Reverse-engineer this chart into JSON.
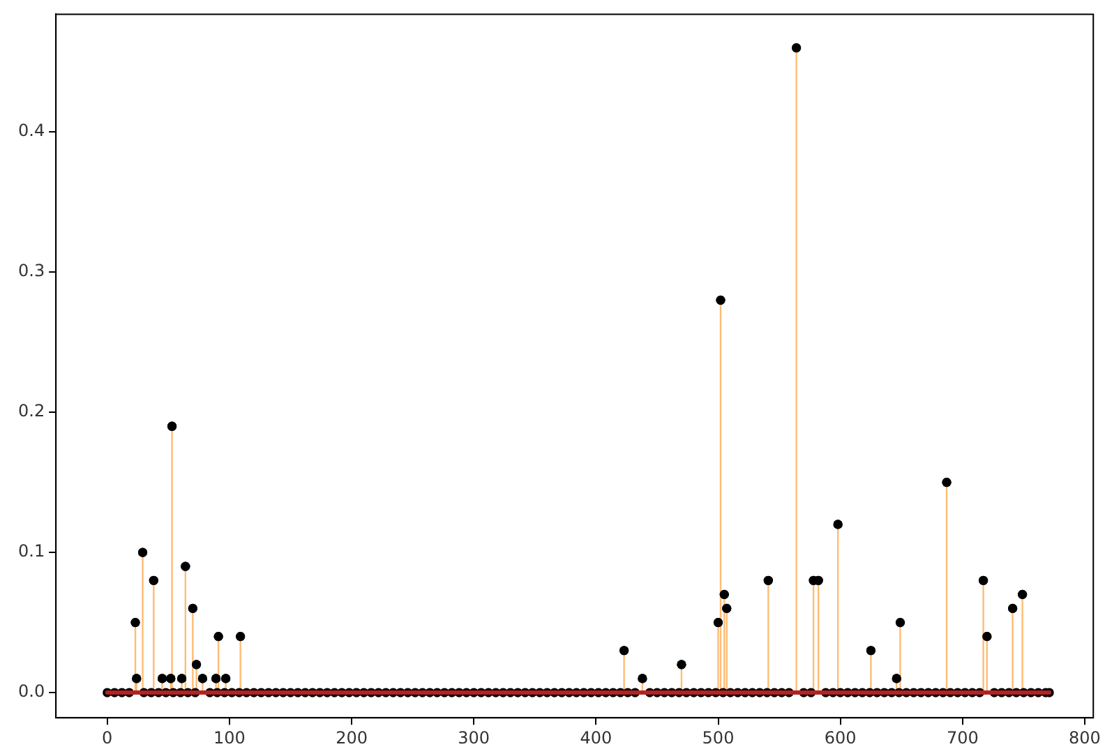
{
  "chart_data": {
    "type": "lollipop",
    "xlim": [
      -42,
      807
    ],
    "xticks": [
      0,
      100,
      200,
      300,
      400,
      500,
      600,
      700,
      800
    ],
    "ylim": [
      -0.018,
      0.484
    ],
    "yticks": [
      {
        "value": 0,
        "label": "0.0"
      },
      {
        "value": 0.1,
        "label": "0.1"
      },
      {
        "value": 0.2,
        "label": "0.2"
      },
      {
        "value": 0.3,
        "label": "0.3"
      },
      {
        "value": 0.4,
        "label": "0.4"
      }
    ],
    "grid": false,
    "legend": false,
    "marker": "circle",
    "ref_lines": [
      {
        "axis": "y",
        "value": 0,
        "color": "#b22222"
      }
    ],
    "series": [
      {
        "type": "scatter",
        "color": "#000000",
        "x": [
          0,
          6,
          12,
          18,
          30,
          36,
          42,
          48,
          54,
          60,
          66,
          72,
          84,
          90,
          96,
          102,
          108,
          114,
          120,
          126,
          132,
          138,
          144,
          150,
          156,
          162,
          168,
          174,
          180,
          186,
          192,
          198,
          204,
          210,
          216,
          222,
          228,
          234,
          240,
          246,
          252,
          258,
          264,
          270,
          276,
          282,
          288,
          294,
          300,
          306,
          312,
          318,
          324,
          330,
          336,
          342,
          348,
          354,
          360,
          366,
          372,
          378,
          384,
          390,
          396,
          402,
          408,
          414,
          420,
          426,
          432,
          444,
          450,
          456,
          462,
          468,
          474,
          480,
          486,
          492,
          498,
          504,
          510,
          516,
          522,
          528,
          534,
          540,
          546,
          552,
          558,
          570,
          576,
          588,
          594,
          600,
          606,
          612,
          618,
          624,
          630,
          636,
          642,
          648,
          654,
          660,
          666,
          672,
          678,
          684,
          690,
          696,
          702,
          708,
          714,
          726,
          732,
          738,
          744,
          750,
          756,
          762,
          768,
          771
        ],
        "values": [
          0,
          0,
          0,
          0,
          0,
          0,
          0,
          0,
          0,
          0,
          0,
          0,
          0,
          0,
          0,
          0,
          0,
          0,
          0,
          0,
          0,
          0,
          0,
          0,
          0,
          0,
          0,
          0,
          0,
          0,
          0,
          0,
          0,
          0,
          0,
          0,
          0,
          0,
          0,
          0,
          0,
          0,
          0,
          0,
          0,
          0,
          0,
          0,
          0,
          0,
          0,
          0,
          0,
          0,
          0,
          0,
          0,
          0,
          0,
          0,
          0,
          0,
          0,
          0,
          0,
          0,
          0,
          0,
          0,
          0,
          0,
          0,
          0,
          0,
          0,
          0,
          0,
          0,
          0,
          0,
          0,
          0,
          0,
          0,
          0,
          0,
          0,
          0,
          0,
          0,
          0,
          0,
          0,
          0,
          0,
          0,
          0,
          0,
          0,
          0,
          0,
          0,
          0,
          0,
          0,
          0,
          0,
          0,
          0,
          0,
          0,
          0,
          0,
          0,
          0,
          0,
          0,
          0,
          0,
          0,
          0,
          0,
          0,
          0
        ]
      },
      {
        "color": "#000000",
        "x": [
          23,
          24,
          29,
          38,
          45,
          52,
          53,
          61,
          64,
          70,
          73,
          78,
          89,
          91,
          97,
          109,
          423,
          438,
          470,
          500,
          502,
          505,
          507,
          541,
          564,
          578,
          582,
          598,
          625,
          646,
          649,
          687,
          717,
          720,
          741,
          749
        ],
        "values": [
          0.05,
          0.01,
          0.1,
          0.08,
          0.01,
          0.01,
          0.19,
          0.01,
          0.09,
          0.06,
          0.02,
          0.01,
          0.01,
          0.04,
          0.01,
          0.04,
          0.03,
          0.01,
          0.02,
          0.05,
          0.28,
          0.07,
          0.06,
          0.08,
          0.46,
          0.08,
          0.08,
          0.12,
          0.03,
          0.01,
          0.05,
          0.15,
          0.08,
          0.04,
          0.06,
          0.07
        ]
      }
    ]
  }
}
